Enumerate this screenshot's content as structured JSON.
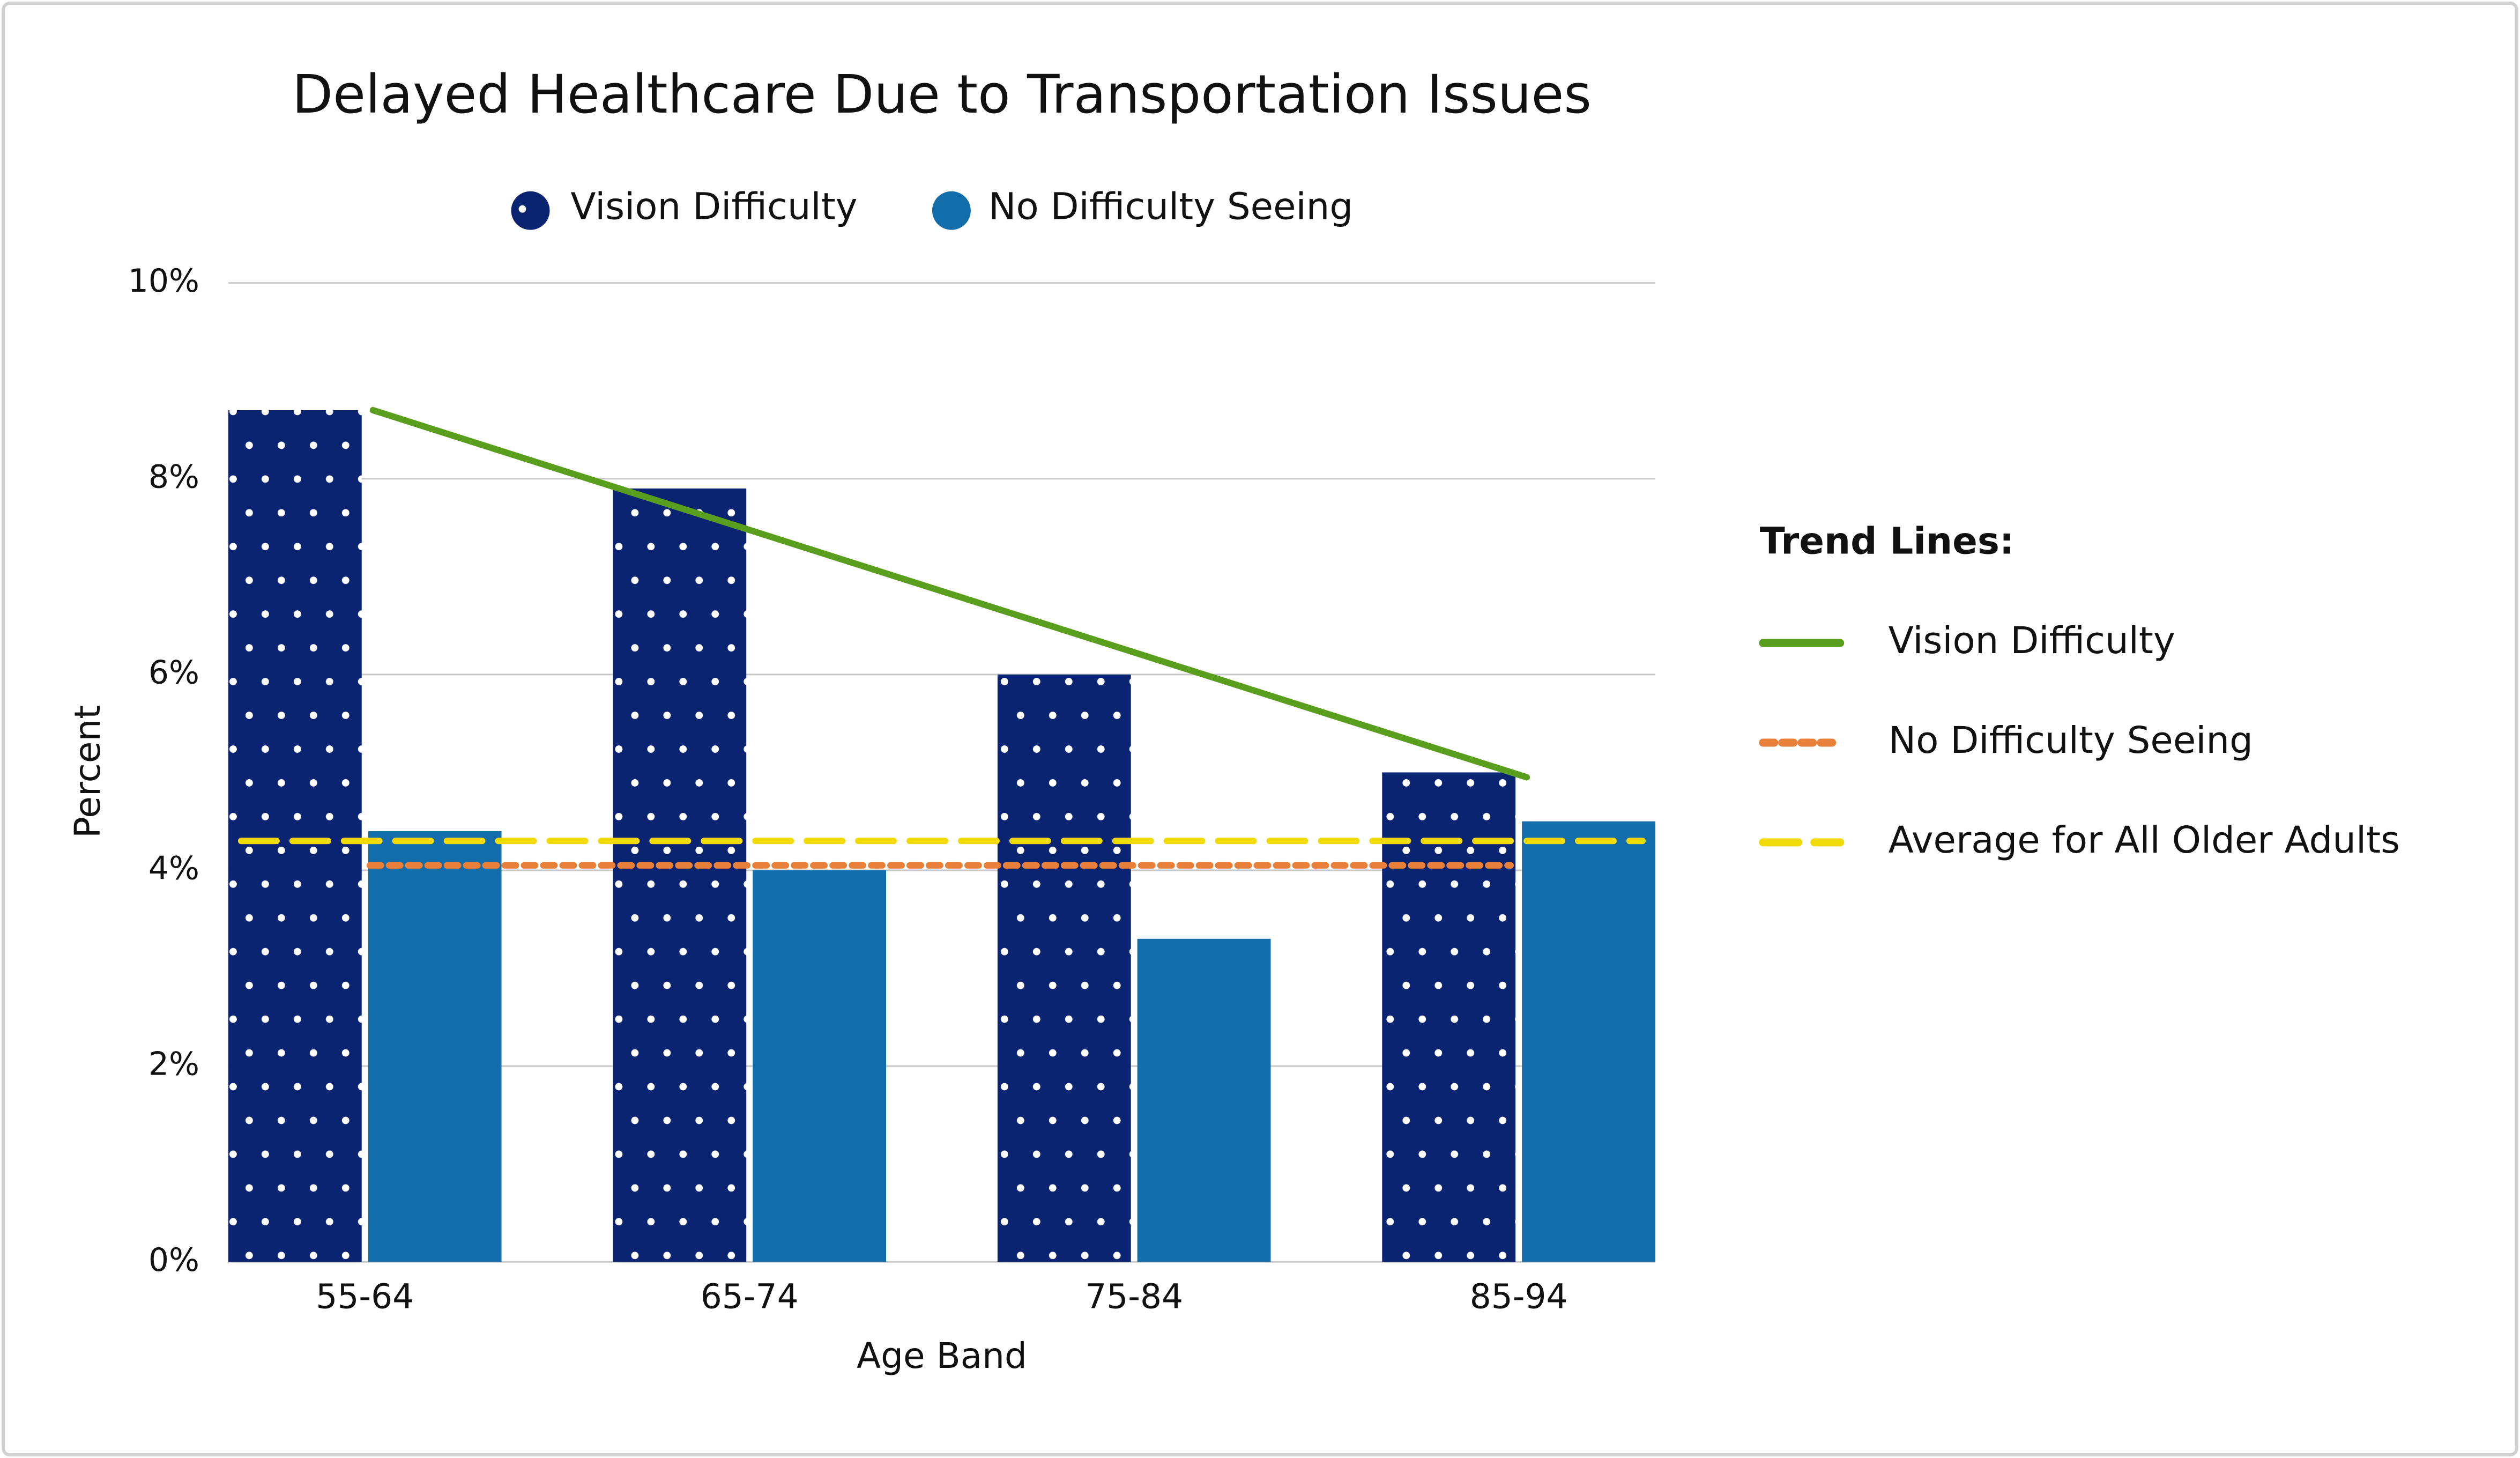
{
  "chart_data": {
    "type": "bar",
    "title": "Delayed Healthcare Due to Transportation Issues",
    "x_label": "Age Band",
    "y_label": "Percent",
    "categories": [
      "55-64",
      "65-74",
      "75-84",
      "85-94"
    ],
    "series": [
      {
        "name": "Vision Difficulty",
        "color": "#0b2472",
        "pattern": "dots",
        "values": [
          8.7,
          7.9,
          6,
          5
        ]
      },
      {
        "name": "No Difficulty Seeing",
        "color": "#136dab",
        "values": [
          4.4,
          4,
          3.3,
          4.5
        ]
      }
    ],
    "ylim": [
      0,
      10
    ],
    "yticks": [
      {
        "value": 0,
        "label": "0%"
      },
      {
        "value": 2,
        "label": "2%"
      },
      {
        "value": 4,
        "label": "4%"
      },
      {
        "value": 6,
        "label": "6%"
      },
      {
        "value": 8,
        "label": "8%"
      },
      {
        "value": 10,
        "label": "10%"
      }
    ],
    "grid": true,
    "trend_lines": {
      "title": "Trend Lines:",
      "series": [
        {
          "name": "Vision Difficulty",
          "color": "#5a9e1e",
          "dash": "solid",
          "values": [
            8.7,
            4.95
          ]
        },
        {
          "name": "No Difficulty Seeing",
          "color": "#e8803a",
          "dash": "dotted",
          "values": [
            4.05,
            4.05
          ]
        },
        {
          "name": "Average for All Older Adults",
          "color": "#f2d90a",
          "dash": "dashed",
          "values": [
            4.3,
            4.3
          ]
        }
      ]
    }
  }
}
